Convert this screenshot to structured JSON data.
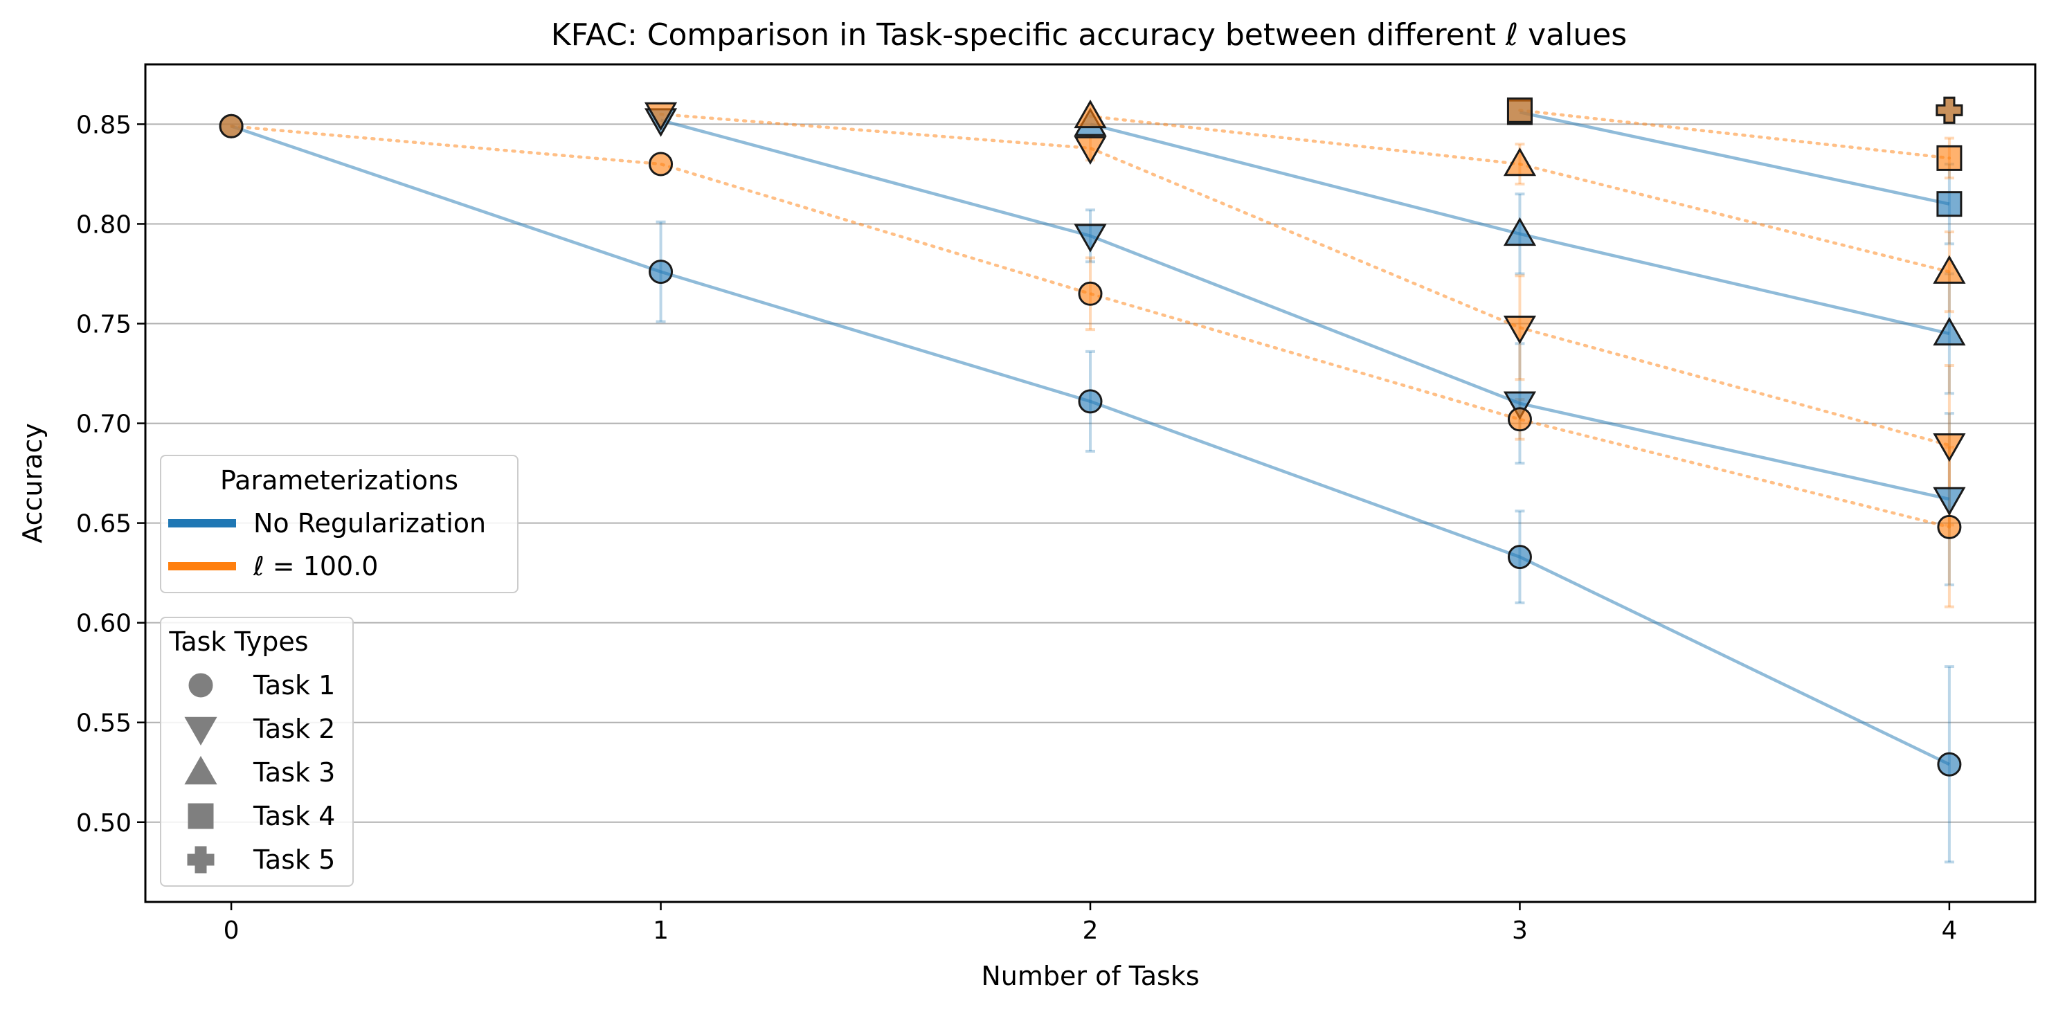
{
  "chart_data": {
    "type": "line",
    "title": "KFAC: Comparison in Task-specific accuracy between different ℓ values",
    "xlabel": "Number of Tasks",
    "ylabel": "Accuracy",
    "x_ticks": [
      "0",
      "1",
      "2",
      "3",
      "4"
    ],
    "y_ticks": [
      "0.50",
      "0.55",
      "0.60",
      "0.65",
      "0.70",
      "0.75",
      "0.80",
      "0.85"
    ],
    "xlim": [
      -0.2,
      4.2
    ],
    "ylim": [
      0.46,
      0.88
    ],
    "grid": "horizontal",
    "parameterizations": {
      "title": "Parameterizations",
      "placement": "center-left",
      "entries": [
        {
          "label": "No Regularization",
          "color": "#1f77b4",
          "line": "solid"
        },
        {
          "label": "ℓ = 100.0",
          "color": "#ff7f0e",
          "line": "dotted"
        }
      ]
    },
    "task_types": {
      "title": "Task Types",
      "placement": "lower-left",
      "entries": [
        {
          "label": "Task 1",
          "marker": "circle"
        },
        {
          "label": "Task 2",
          "marker": "triangle-down"
        },
        {
          "label": "Task 3",
          "marker": "triangle-up"
        },
        {
          "label": "Task 4",
          "marker": "square"
        },
        {
          "label": "Task 5",
          "marker": "plus"
        }
      ]
    },
    "series": [
      {
        "param": "No Regularization",
        "task": "Task 1",
        "marker": "circle",
        "color": "#1f77b4",
        "line": "solid",
        "x": [
          0,
          1,
          2,
          3,
          4
        ],
        "y": [
          0.849,
          0.776,
          0.711,
          0.633,
          0.529
        ],
        "err": [
          0,
          0.025,
          0.025,
          0.023,
          0.049
        ]
      },
      {
        "param": "No Regularization",
        "task": "Task 2",
        "marker": "triangle-down",
        "color": "#1f77b4",
        "line": "solid",
        "x": [
          1,
          2,
          3,
          4
        ],
        "y": [
          0.852,
          0.794,
          0.71,
          0.662
        ],
        "err": [
          0,
          0.013,
          0.03,
          0.043
        ]
      },
      {
        "param": "No Regularization",
        "task": "Task 3",
        "marker": "triangle-up",
        "color": "#1f77b4",
        "line": "solid",
        "x": [
          2,
          3,
          4
        ],
        "y": [
          0.85,
          0.795,
          0.745
        ],
        "err": [
          0,
          0.02,
          0.03
        ]
      },
      {
        "param": "No Regularization",
        "task": "Task 4",
        "marker": "square",
        "color": "#1f77b4",
        "line": "solid",
        "x": [
          3,
          4
        ],
        "y": [
          0.856,
          0.81
        ],
        "err": [
          0,
          0.02
        ]
      },
      {
        "param": "No Regularization",
        "task": "Task 5",
        "marker": "plus",
        "color": "#1f77b4",
        "line": "solid",
        "x": [
          4
        ],
        "y": [
          0.857
        ],
        "err": [
          0
        ]
      },
      {
        "param": "ℓ = 100.0",
        "task": "Task 1",
        "marker": "circle",
        "color": "#ff7f0e",
        "line": "dotted",
        "x": [
          0,
          1,
          2,
          3,
          4
        ],
        "y": [
          0.849,
          0.83,
          0.765,
          0.702,
          0.648
        ],
        "err": [
          0,
          0,
          0.018,
          0.01,
          0.04
        ]
      },
      {
        "param": "ℓ = 100.0",
        "task": "Task 2",
        "marker": "triangle-down",
        "color": "#ff7f0e",
        "line": "dotted",
        "x": [
          1,
          2,
          3,
          4
        ],
        "y": [
          0.855,
          0.838,
          0.748,
          0.689
        ],
        "err": [
          0,
          0.006,
          0.026,
          0.04
        ]
      },
      {
        "param": "ℓ = 100.0",
        "task": "Task 3",
        "marker": "triangle-up",
        "color": "#ff7f0e",
        "line": "dotted",
        "x": [
          2,
          3,
          4
        ],
        "y": [
          0.854,
          0.83,
          0.776
        ],
        "err": [
          0,
          0.01,
          0.02
        ]
      },
      {
        "param": "ℓ = 100.0",
        "task": "Task 4",
        "marker": "square",
        "color": "#ff7f0e",
        "line": "dotted",
        "x": [
          3,
          4
        ],
        "y": [
          0.857,
          0.833
        ],
        "err": [
          0,
          0.01
        ]
      },
      {
        "param": "ℓ = 100.0",
        "task": "Task 5",
        "marker": "plus",
        "color": "#ff7f0e",
        "line": "dotted",
        "x": [
          4
        ],
        "y": [
          0.857
        ],
        "err": [
          0
        ]
      }
    ]
  }
}
